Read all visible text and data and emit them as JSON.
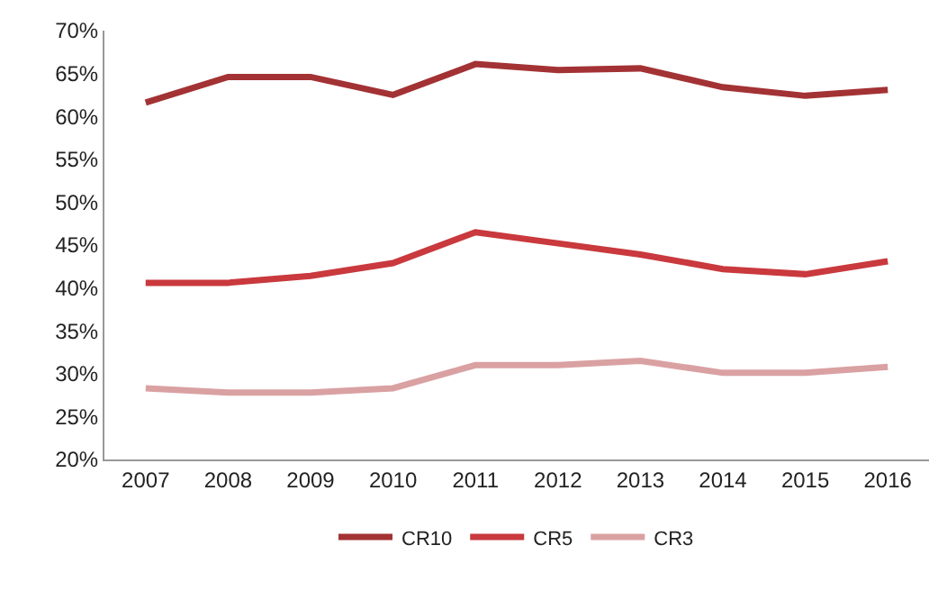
{
  "chart_data": {
    "type": "line",
    "categories": [
      "2007",
      "2008",
      "2009",
      "2010",
      "2011",
      "2012",
      "2013",
      "2014",
      "2015",
      "2016"
    ],
    "series": [
      {
        "name": "CR10",
        "color": "#a33234",
        "values": [
          61.6,
          64.6,
          64.6,
          62.5,
          66.1,
          65.4,
          65.6,
          63.4,
          62.4,
          63.1
        ]
      },
      {
        "name": "CR5",
        "color": "#c9393d",
        "values": [
          40.6,
          40.6,
          41.4,
          42.9,
          46.5,
          45.2,
          43.9,
          42.2,
          41.6,
          43.1
        ]
      },
      {
        "name": "CR3",
        "color": "#daa1a2",
        "values": [
          28.3,
          27.8,
          27.8,
          28.3,
          31.0,
          31.0,
          31.5,
          30.1,
          30.1,
          30.8
        ]
      }
    ],
    "ylim": [
      20,
      70
    ],
    "yticks": [
      {
        "value": 20,
        "label": "20%"
      },
      {
        "value": 25,
        "label": "25%"
      },
      {
        "value": 30,
        "label": "30%"
      },
      {
        "value": 35,
        "label": "35%"
      },
      {
        "value": 40,
        "label": "40%"
      },
      {
        "value": 45,
        "label": "45%"
      },
      {
        "value": 50,
        "label": "50%"
      },
      {
        "value": 55,
        "label": "55%"
      },
      {
        "value": 60,
        "label": "60%"
      },
      {
        "value": 65,
        "label": "65%"
      },
      {
        "value": 70,
        "label": "70%"
      }
    ],
    "grid": false,
    "legend": "bottom",
    "marker": "none",
    "line_style": "solid"
  }
}
